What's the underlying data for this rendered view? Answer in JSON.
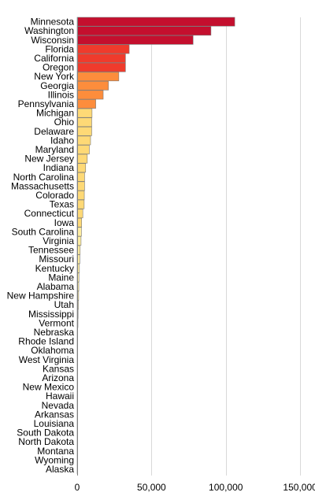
{
  "chart_data": {
    "type": "bar",
    "orientation": "horizontal",
    "title": "",
    "xlabel": "",
    "ylabel": "",
    "xlim": [
      0,
      160000
    ],
    "grid": true,
    "legend": "none",
    "x_ticks": [
      0,
      50000,
      100000,
      150000
    ],
    "x_tick_labels": [
      "0",
      "50,000",
      "100,000",
      "150,000"
    ],
    "categories": [
      "Minnesota",
      "Washington",
      "Wisconsin",
      "Florida",
      "California",
      "Oregon",
      "New York",
      "Georgia",
      "Illinois",
      "Pennsylvania",
      "Michigan",
      "Ohio",
      "Delaware",
      "Idaho",
      "Maryland",
      "New Jersey",
      "Indiana",
      "North Carolina",
      "Massachusetts",
      "Colorado",
      "Texas",
      "Connecticut",
      "Iowa",
      "South Carolina",
      "Virginia",
      "Tennessee",
      "Missouri",
      "Kentucky",
      "Maine",
      "Alabama",
      "New Hampshire",
      "Utah",
      "Mississippi",
      "Vermont",
      "Nebraska",
      "Rhode Island",
      "Oklahoma",
      "West Virginia",
      "Kansas",
      "Arizona",
      "New Mexico",
      "Hawaii",
      "Nevada",
      "Arkansas",
      "Louisiana",
      "South Dakota",
      "North Dakota",
      "Montana",
      "Wyoming",
      "Alaska"
    ],
    "values": [
      106000,
      90000,
      78000,
      35000,
      32500,
      32500,
      28000,
      21000,
      17500,
      12500,
      10000,
      9800,
      9800,
      9000,
      8200,
      6800,
      5700,
      5000,
      5000,
      4800,
      4700,
      3800,
      3000,
      2900,
      2600,
      2000,
      1800,
      1500,
      1200,
      1100,
      1000,
      800,
      600,
      500,
      200,
      150,
      120,
      100,
      90,
      80,
      70,
      60,
      50,
      40,
      30,
      20,
      15,
      10,
      5,
      3
    ],
    "colors": {
      "darkest": "#c40f2e",
      "dark": "#ef3b2c",
      "mid": "#fd8d3c",
      "light": "#fed976",
      "lightest": "#ffeda0"
    }
  }
}
